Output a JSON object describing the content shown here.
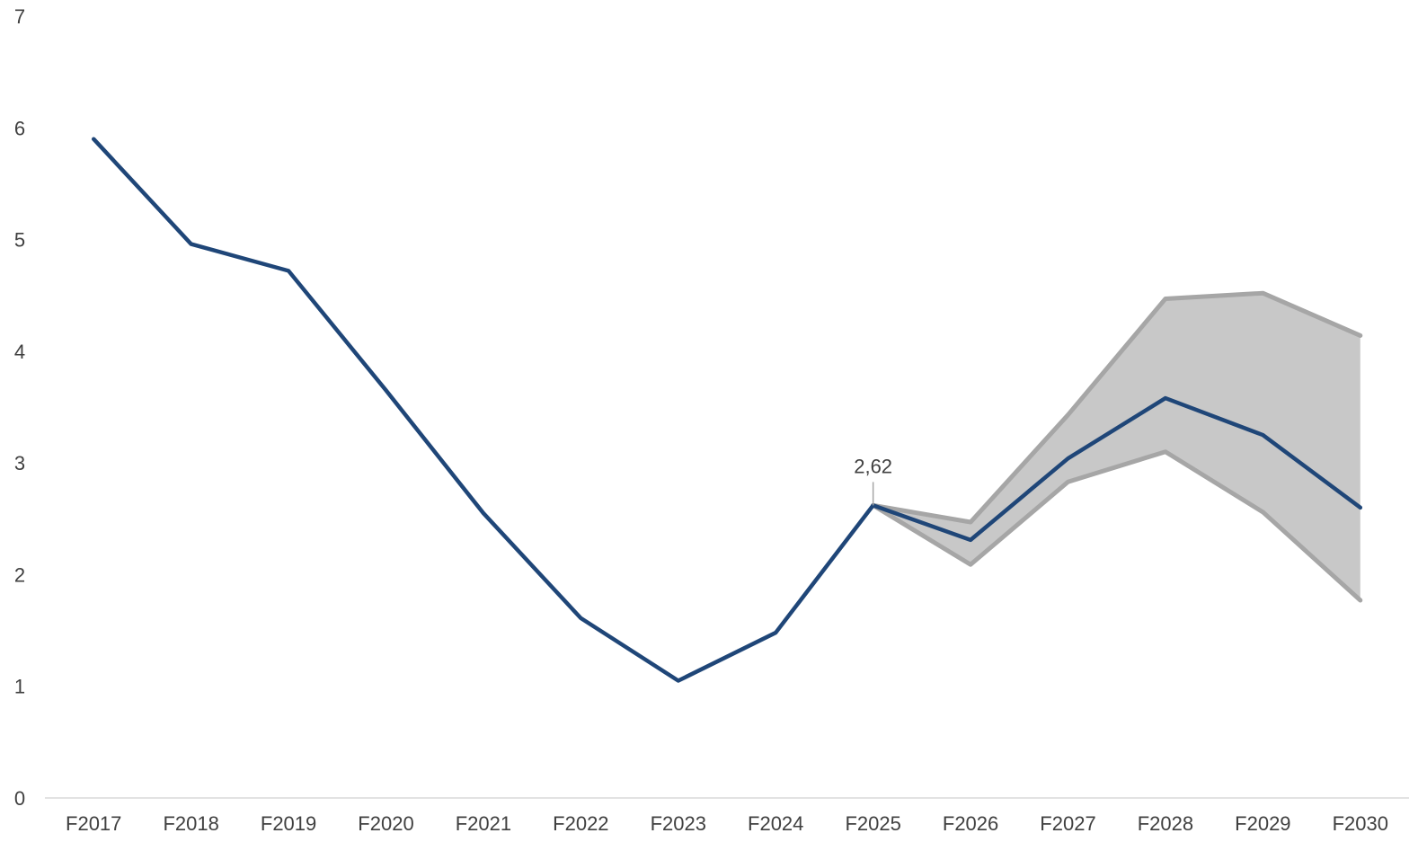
{
  "chart_data": {
    "type": "line",
    "categories": [
      "F2017",
      "F2018",
      "F2019",
      "F2020",
      "F2021",
      "F2022",
      "F2023",
      "F2024",
      "F2025",
      "F2026",
      "F2027",
      "F2028",
      "F2029",
      "F2030"
    ],
    "series": [
      {
        "role": "central",
        "color": "#1f4678",
        "values": [
          5.9,
          4.96,
          4.72,
          3.65,
          2.55,
          1.61,
          1.05,
          1.48,
          2.62,
          2.31,
          3.04,
          3.58,
          3.25,
          2.6
        ]
      },
      {
        "role": "upper",
        "color": "#a6a6a6",
        "values": [
          null,
          null,
          null,
          null,
          null,
          null,
          null,
          null,
          2.62,
          2.47,
          3.43,
          4.47,
          4.52,
          4.14
        ]
      },
      {
        "role": "lower",
        "color": "#a6a6a6",
        "values": [
          null,
          null,
          null,
          null,
          null,
          null,
          null,
          null,
          2.62,
          2.09,
          2.83,
          3.1,
          2.56,
          1.77
        ]
      }
    ],
    "band": {
      "between": [
        "upper",
        "lower"
      ],
      "color": "#c8c8c8"
    },
    "ylim": [
      0,
      7
    ],
    "yticks": [
      0,
      1,
      2,
      3,
      4,
      5,
      6,
      7
    ],
    "annotations": [
      {
        "category": "F2025",
        "text": "2,62"
      }
    ],
    "grid": false,
    "legend": "none",
    "axis_color": "#d9d9d9",
    "label_color": "#404040"
  }
}
